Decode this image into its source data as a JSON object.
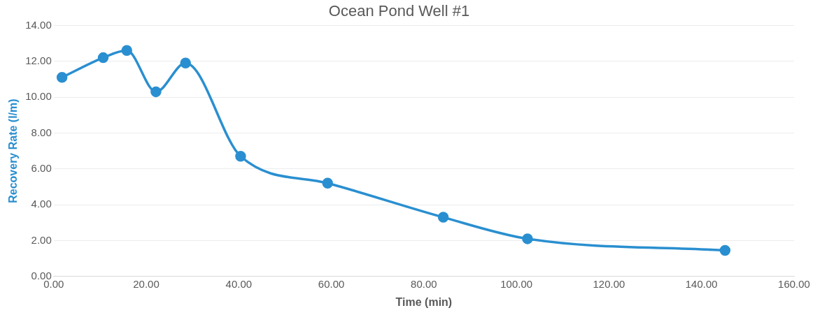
{
  "chart_data": {
    "type": "line",
    "title": "Ocean Pond Well #1",
    "xlabel": "Time (min)",
    "ylabel": "Recovery Rate (l/m)",
    "x": [
      1.8,
      10.7,
      15.8,
      22.1,
      28.5,
      40.4,
      59.2,
      84.2,
      102.4,
      145.1
    ],
    "series": [
      {
        "color": "#2a8fd0",
        "values": [
          11.1,
          12.2,
          12.6,
          10.3,
          11.9,
          6.7,
          5.2,
          3.3,
          2.1,
          1.45
        ]
      }
    ],
    "xlim": [
      0,
      160
    ],
    "xticks": [
      {
        "value": 0,
        "label": "0.00"
      },
      {
        "value": 20,
        "label": "20.00"
      },
      {
        "value": 40,
        "label": "40.00"
      },
      {
        "value": 60,
        "label": "60.00"
      },
      {
        "value": 80,
        "label": "80.00"
      },
      {
        "value": 100,
        "label": "100.00"
      },
      {
        "value": 120,
        "label": "120.00"
      },
      {
        "value": 140,
        "label": "140.00"
      },
      {
        "value": 160,
        "label": "160.00"
      }
    ],
    "ylim": [
      0,
      14
    ],
    "yticks": [
      {
        "value": 0,
        "label": "0.00"
      },
      {
        "value": 2,
        "label": "2.00"
      },
      {
        "value": 4,
        "label": "4.00"
      },
      {
        "value": 6,
        "label": "6.00"
      },
      {
        "value": 8,
        "label": "8.00"
      },
      {
        "value": 10,
        "label": "10.00"
      },
      {
        "value": 12,
        "label": "12.00"
      },
      {
        "value": 14,
        "label": "14.00"
      }
    ],
    "grid": "y",
    "marker": "circle",
    "line_style": "solid",
    "legend": false
  }
}
